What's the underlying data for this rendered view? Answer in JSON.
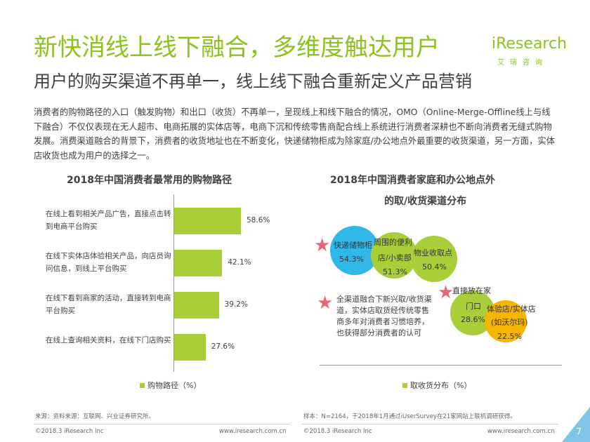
{
  "header": {
    "title": "新快消线上线下融合，多维度触达用户",
    "subtitle": "用户的购买渠道不再单一，线上线下融合重新定义产品营销",
    "logo_text": "iResearch",
    "logo_cn": "艾瑞咨询"
  },
  "intro": "消费者的购物路径的入口（触发购物）和出口（收货）不再单一，呈现线上和线下融合的情况，OMO（Online-Merge-Offline线上与线下融合）不仅仅表现在无人超市、电商拓展的实体店等，电商下沉和传统零售商配合线上系统进行消费者深耕也不断向消费者无缝式购物发展。消费渠道融合的背景下，消费者的收货地址也在不断变化，快递储物柜成为除家庭/办公地点外最重要的收货渠道，另一方面，实体店收货也成为用户的选择之一。",
  "chart_data": [
    {
      "type": "bar",
      "orientation": "horizontal",
      "title": "2018年中国消费者最常用的购物路径",
      "categories": [
        "在线上看到相关产品广告，直接点击转到电商平台购买",
        "在线下实体店体验相关产品，向店员询问信息，到线上平台购买",
        "在线下看到商家的活动，直接转到电商平台购买",
        "在线上查询相关资料，在线下门店购买"
      ],
      "values": [
        58.6,
        42.1,
        39.2,
        27.6
      ],
      "value_labels": [
        "58.6%",
        "42.1%",
        "39.2%",
        "27.6%"
      ],
      "legend": "购物路径（%）",
      "color": "#a8cf38"
    },
    {
      "type": "bubble",
      "title_line1": "2018年中国消费者家庭和办公地点外",
      "title_line2": "的取/收货渠道分布",
      "items": [
        {
          "label": "快递储物柜",
          "value": 54.3,
          "value_label": "54.3%",
          "color": "#30b8e8"
        },
        {
          "label": "周围的便利店/小卖部",
          "label_line1": "周围的便利",
          "label_line2": "店/小卖部",
          "value": 51.3,
          "value_label": "51.3%",
          "color": "#a8cf38"
        },
        {
          "label": "物业收取点",
          "value": 50.4,
          "value_label": "50.4%",
          "color": "#a8cf38"
        },
        {
          "label": "直接放在家门口",
          "label_line1": "直接放在家",
          "label_line2": "门口",
          "value": 28.6,
          "value_label": "28.6%",
          "color": "#a8cf38"
        },
        {
          "label": "体验店/实体店(如沃尔玛)",
          "label_line1": "体验店/实体店",
          "label_line2": "(如沃尔玛)",
          "value": 22.5,
          "value_label": "22.5%",
          "color": "#f7b500"
        }
      ],
      "note": "全渠道融合下新兴取/收货渠道，实体店取货经传统零售商多年对消费者习惯培养，也获得部分消费者的认可",
      "legend": "取收货分布（%）",
      "color": "#a8cf38"
    }
  ],
  "footer": {
    "source_left": "来源：资料来源：互联网、兴业证券研究所。",
    "sample_right": "样本：N=2164，于2018年1月通过iUserSurvey在21家网站上联机调研获得。",
    "copyright_left": "©2018.3 iResearch Inc",
    "url_left": "www.iresearch.com.cn",
    "copyright_right": "©2018.3 iResearch Inc",
    "url_right": "www.iresearch.com.cn",
    "page": "7"
  }
}
